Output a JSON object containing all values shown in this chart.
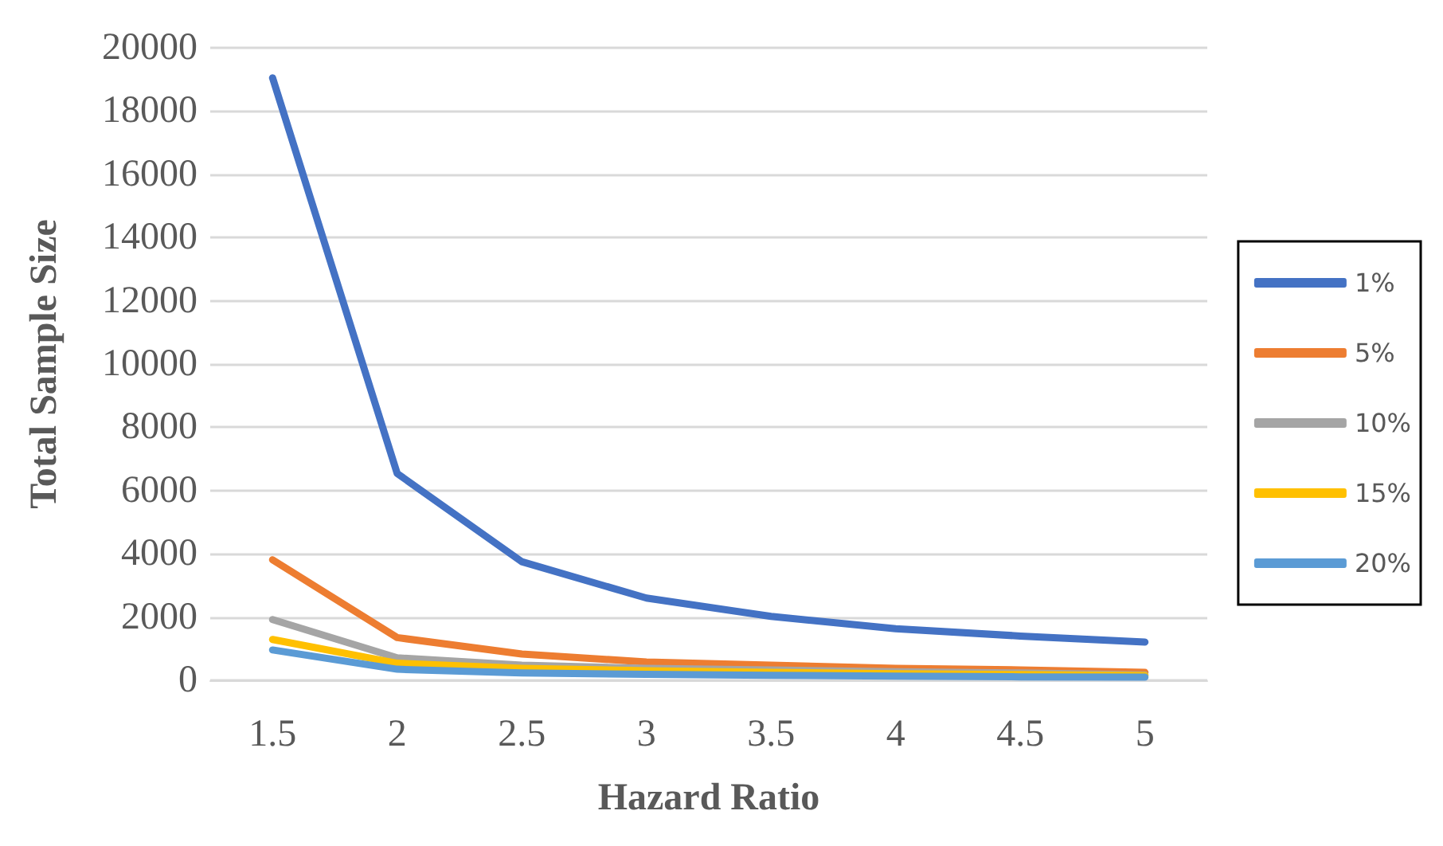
{
  "chart_data": {
    "type": "line",
    "xlabel": "Hazard Ratio",
    "ylabel": "Total Sample Size",
    "categories": [
      "1.5",
      "2",
      "2.5",
      "3",
      "3.5",
      "4",
      "4.5",
      "5"
    ],
    "ylim": [
      0,
      20000
    ],
    "yticks": [
      0,
      2000,
      4000,
      6000,
      8000,
      10000,
      12000,
      14000,
      16000,
      18000,
      20000
    ],
    "grid": "y",
    "legend": "right",
    "marker": "none",
    "line_style": "solid",
    "series": [
      {
        "name": "1%",
        "color": "#4472c4",
        "values": [
          19050,
          6540,
          3750,
          2600,
          2020,
          1630,
          1400,
          1210
        ]
      },
      {
        "name": "5%",
        "color": "#ed7d31",
        "values": [
          3810,
          1350,
          830,
          580,
          480,
          380,
          330,
          250
        ]
      },
      {
        "name": "10%",
        "color": "#a5a5a5",
        "values": [
          1920,
          710,
          480,
          380,
          330,
          270,
          230,
          170
        ]
      },
      {
        "name": "15%",
        "color": "#ffc000",
        "values": [
          1290,
          540,
          380,
          300,
          250,
          210,
          180,
          150
        ]
      },
      {
        "name": "20%",
        "color": "#5b9bd5",
        "values": [
          960,
          350,
          230,
          190,
          160,
          130,
          110,
          100
        ]
      }
    ]
  }
}
